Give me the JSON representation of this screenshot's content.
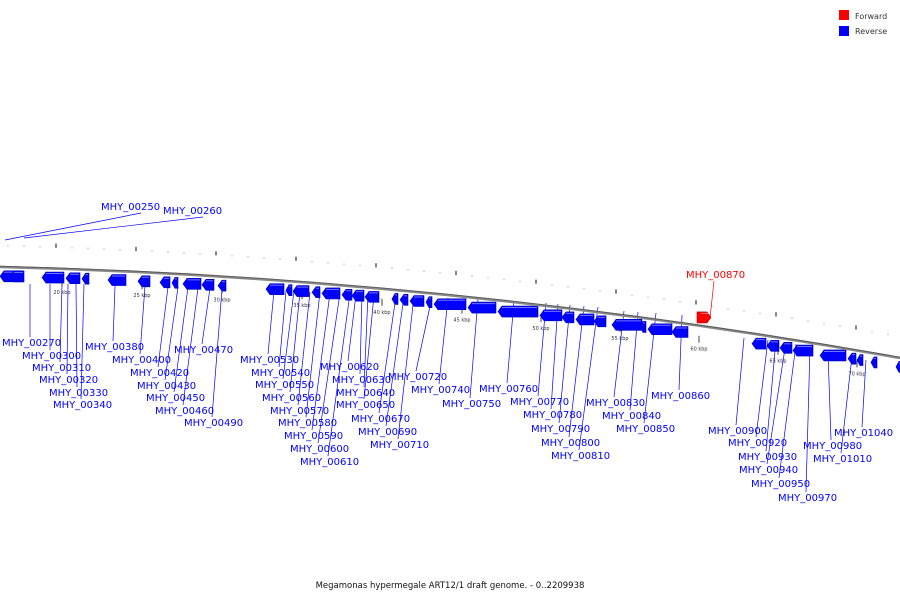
{
  "legend": {
    "forward": {
      "label": "Forward",
      "color": "#ff0000"
    },
    "reverse": {
      "label": "Reverse",
      "color": "#0000ff"
    }
  },
  "caption": "Megamonas hypermegale ART12/1 draft genome. - 0..2209938",
  "ticks": [
    "20 kbp",
    "25 kbp",
    "30 kbp",
    "35 kbp",
    "40 kbp",
    "45 kbp",
    "50 kbp",
    "55 kbp",
    "60 kbp",
    "65 kbp",
    "70 kbp"
  ],
  "genes": [
    {
      "name": "MHY_00250",
      "strand": "reverse"
    },
    {
      "name": "MHY_00260",
      "strand": "reverse"
    },
    {
      "name": "MHY_00270",
      "strand": "reverse"
    },
    {
      "name": "MHY_00300",
      "strand": "reverse"
    },
    {
      "name": "MHY_00310",
      "strand": "reverse"
    },
    {
      "name": "MHY_00320",
      "strand": "reverse"
    },
    {
      "name": "MHY_00330",
      "strand": "reverse"
    },
    {
      "name": "MHY_00340",
      "strand": "reverse"
    },
    {
      "name": "MHY_00380",
      "strand": "reverse"
    },
    {
      "name": "MHY_00400",
      "strand": "reverse"
    },
    {
      "name": "MHY_00420",
      "strand": "reverse"
    },
    {
      "name": "MHY_00430",
      "strand": "reverse"
    },
    {
      "name": "MHY_00450",
      "strand": "reverse"
    },
    {
      "name": "MHY_00460",
      "strand": "reverse"
    },
    {
      "name": "MHY_00470",
      "strand": "reverse"
    },
    {
      "name": "MHY_00490",
      "strand": "reverse"
    },
    {
      "name": "MHY_00530",
      "strand": "reverse"
    },
    {
      "name": "MHY_00540",
      "strand": "reverse"
    },
    {
      "name": "MHY_00550",
      "strand": "reverse"
    },
    {
      "name": "MHY_00560",
      "strand": "reverse"
    },
    {
      "name": "MHY_00570",
      "strand": "reverse"
    },
    {
      "name": "MHY_00580",
      "strand": "reverse"
    },
    {
      "name": "MHY_00590",
      "strand": "reverse"
    },
    {
      "name": "MHY_00600",
      "strand": "reverse"
    },
    {
      "name": "MHY_00610",
      "strand": "reverse"
    },
    {
      "name": "MHY_00620",
      "strand": "reverse"
    },
    {
      "name": "MHY_00630",
      "strand": "reverse"
    },
    {
      "name": "MHY_00640",
      "strand": "reverse"
    },
    {
      "name": "MHY_00650",
      "strand": "reverse"
    },
    {
      "name": "MHY_00670",
      "strand": "reverse"
    },
    {
      "name": "MHY_00690",
      "strand": "reverse"
    },
    {
      "name": "MHY_00710",
      "strand": "reverse"
    },
    {
      "name": "MHY_00720",
      "strand": "reverse"
    },
    {
      "name": "MHY_00740",
      "strand": "reverse"
    },
    {
      "name": "MHY_00750",
      "strand": "reverse"
    },
    {
      "name": "MHY_00760",
      "strand": "reverse"
    },
    {
      "name": "MHY_00770",
      "strand": "reverse"
    },
    {
      "name": "MHY_00780",
      "strand": "reverse"
    },
    {
      "name": "MHY_00790",
      "strand": "reverse"
    },
    {
      "name": "MHY_00800",
      "strand": "reverse"
    },
    {
      "name": "MHY_00810",
      "strand": "reverse"
    },
    {
      "name": "MHY_00830",
      "strand": "reverse"
    },
    {
      "name": "MHY_00840",
      "strand": "reverse"
    },
    {
      "name": "MHY_00850",
      "strand": "reverse"
    },
    {
      "name": "MHY_00860",
      "strand": "reverse"
    },
    {
      "name": "MHY_00870",
      "strand": "forward"
    },
    {
      "name": "MHY_00900",
      "strand": "reverse"
    },
    {
      "name": "MHY_00920",
      "strand": "reverse"
    },
    {
      "name": "MHY_00930",
      "strand": "reverse"
    },
    {
      "name": "MHY_00940",
      "strand": "reverse"
    },
    {
      "name": "MHY_00950",
      "strand": "reverse"
    },
    {
      "name": "MHY_00970",
      "strand": "reverse"
    },
    {
      "name": "MHY_00980",
      "strand": "reverse"
    },
    {
      "name": "MHY_01010",
      "strand": "reverse"
    },
    {
      "name": "MHY_01040",
      "strand": "reverse"
    }
  ]
}
